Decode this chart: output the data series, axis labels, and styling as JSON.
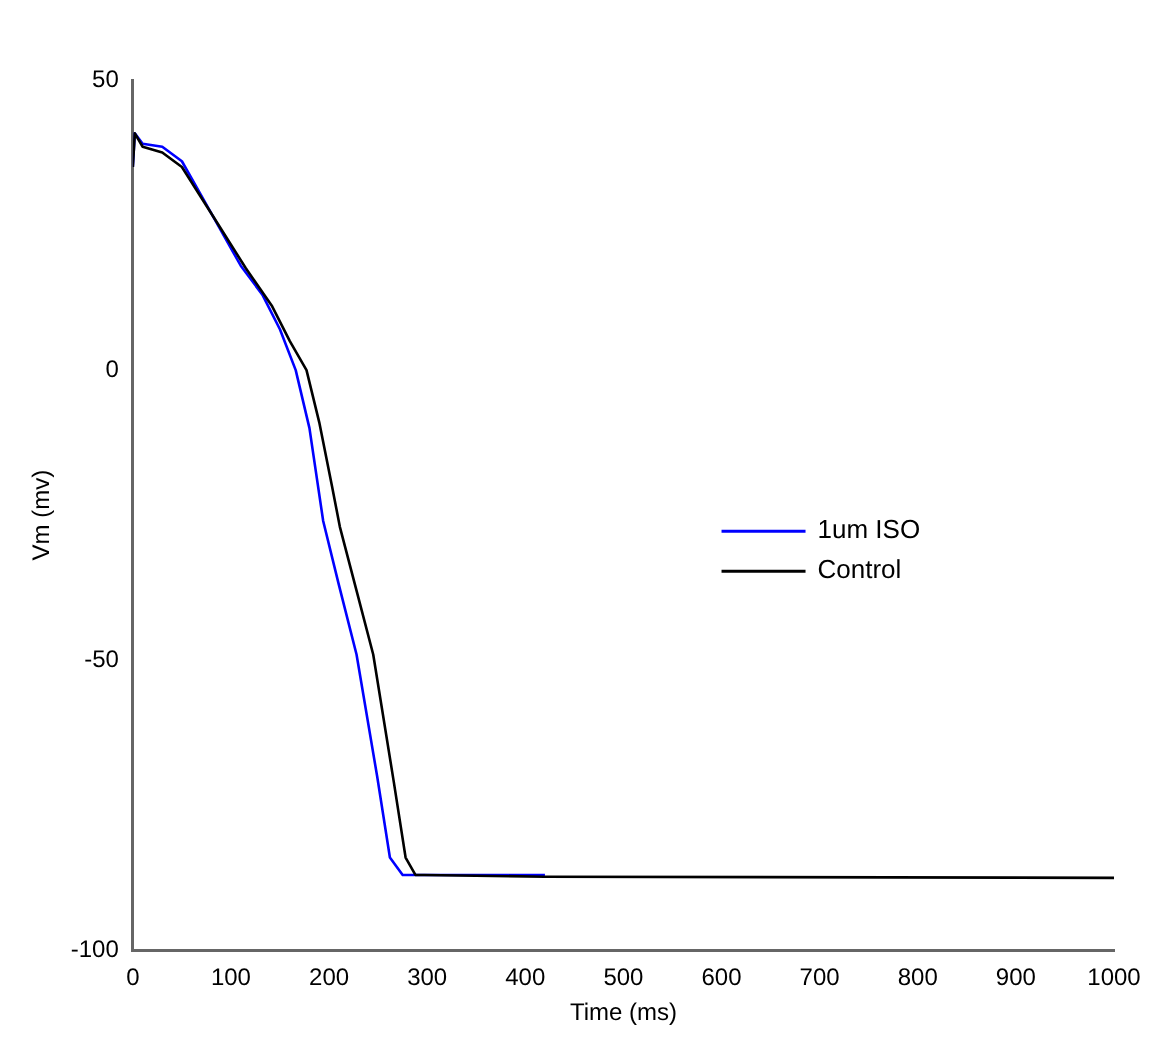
{
  "chart_data": {
    "type": "line",
    "xlabel": "Time (ms)",
    "ylabel": "Vm (mv)",
    "xlim": [
      0,
      1000
    ],
    "xticks": [
      0,
      100,
      200,
      300,
      400,
      500,
      600,
      700,
      800,
      900,
      1000
    ],
    "ylim": [
      -100,
      50
    ],
    "yticks": [
      -100,
      -50,
      0,
      50
    ],
    "grid": false,
    "legend": "right",
    "marker": "none",
    "line_style": "solid",
    "series": [
      {
        "name": "1um ISO",
        "color": "#0000ff",
        "x": [
          0,
          2,
          10,
          30,
          50,
          80,
          110,
          132,
          150,
          166,
          180,
          194,
          210,
          228,
          249,
          262,
          275,
          290,
          420
        ],
        "values": [
          35,
          40.8,
          39,
          38.5,
          36,
          27,
          18,
          13,
          7,
          0,
          -10,
          -26,
          -37,
          -49,
          -70,
          -84,
          -87,
          -87,
          -87
        ]
      },
      {
        "name": "Control",
        "color": "#000000",
        "x": [
          0,
          2,
          10,
          30,
          50,
          80,
          115,
          142,
          160,
          177,
          190,
          203,
          211,
          228,
          245,
          266,
          278,
          288,
          297,
          420,
          1000
        ],
        "values": [
          35,
          40.8,
          38.5,
          37.5,
          35,
          27,
          17.6,
          11,
          5,
          0,
          -9,
          -20,
          -27,
          -38,
          -49,
          -71,
          -84,
          -87,
          -87,
          -87.3,
          -87.5
        ]
      }
    ]
  }
}
